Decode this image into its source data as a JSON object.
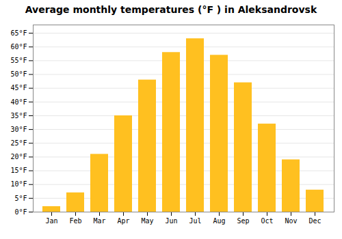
{
  "chart_data": {
    "type": "bar",
    "title": "Average monthly temperatures (°F ) in Aleksandrovsk",
    "categories": [
      "Jan",
      "Feb",
      "Mar",
      "Apr",
      "May",
      "Jun",
      "Jul",
      "Aug",
      "Sep",
      "Oct",
      "Nov",
      "Dec"
    ],
    "values": [
      2,
      7,
      21,
      35,
      48,
      58,
      63,
      57,
      47,
      32,
      19,
      8
    ],
    "color": "#FFC020",
    "ylim": [
      0,
      68
    ],
    "yticks": [
      {
        "value": 0,
        "label": "0°F"
      },
      {
        "value": 5,
        "label": "5°F"
      },
      {
        "value": 10,
        "label": "10°F"
      },
      {
        "value": 15,
        "label": "15°F"
      },
      {
        "value": 20,
        "label": "20°F"
      },
      {
        "value": 25,
        "label": "25°F"
      },
      {
        "value": 30,
        "label": "30°F"
      },
      {
        "value": 35,
        "label": "35°F"
      },
      {
        "value": 40,
        "label": "40°F"
      },
      {
        "value": 45,
        "label": "45°F"
      },
      {
        "value": 50,
        "label": "50°F"
      },
      {
        "value": 55,
        "label": "55°F"
      },
      {
        "value": 60,
        "label": "60°F"
      },
      {
        "value": 65,
        "label": "65°F"
      }
    ],
    "grid": true
  }
}
